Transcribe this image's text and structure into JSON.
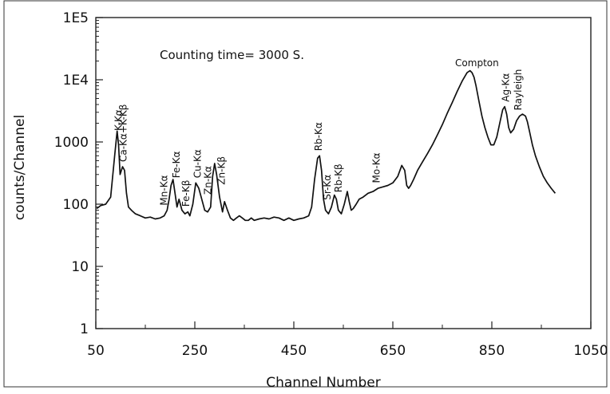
{
  "chart_data": {
    "type": "line",
    "title": "",
    "annotation": "Counting time= 3000 S.",
    "xlabel": "Channel Number",
    "ylabel": "counts/Channel",
    "xlim": [
      50,
      1050
    ],
    "ylim": [
      1,
      100000
    ],
    "yscale": "log",
    "grid": false,
    "xticks": [
      50,
      250,
      450,
      650,
      850,
      1050
    ],
    "xtick_labels": [
      "50",
      "250",
      "450",
      "650",
      "850",
      "1050"
    ],
    "yticks": [
      1,
      10,
      100,
      1000,
      10000,
      100000
    ],
    "ytick_labels": [
      "1",
      "10",
      "100",
      "1000",
      "1E4",
      "1E5"
    ],
    "series": [
      {
        "name": "",
        "color": "#111111",
        "x": [
          52,
          60,
          70,
          80,
          88,
          93,
          96,
          99,
          104,
          108,
          112,
          116,
          122,
          130,
          140,
          150,
          160,
          170,
          180,
          188,
          194,
          198,
          202,
          206,
          210,
          214,
          218,
          224,
          230,
          236,
          240,
          246,
          252,
          258,
          264,
          270,
          276,
          282,
          286,
          290,
          294,
          300,
          306,
          310,
          316,
          322,
          328,
          334,
          340,
          346,
          352,
          358,
          364,
          370,
          380,
          390,
          400,
          410,
          420,
          430,
          440,
          450,
          460,
          470,
          480,
          486,
          492,
          498,
          502,
          506,
          510,
          514,
          520,
          526,
          532,
          536,
          540,
          546,
          552,
          558,
          562,
          566,
          570,
          576,
          582,
          590,
          600,
          610,
          620,
          630,
          640,
          650,
          660,
          668,
          674,
          678,
          682,
          686,
          692,
          700,
          710,
          720,
          730,
          740,
          750,
          760,
          770,
          780,
          790,
          800,
          806,
          810,
          814,
          818,
          824,
          830,
          836,
          842,
          848,
          854,
          860,
          866,
          872,
          876,
          880,
          884,
          888,
          894,
          900,
          906,
          912,
          918,
          922,
          926,
          932,
          938,
          946,
          954,
          962,
          970,
          978
        ],
        "values": [
          85,
          95,
          100,
          130,
          600,
          1500,
          900,
          300,
          400,
          350,
          150,
          90,
          80,
          70,
          65,
          60,
          62,
          58,
          60,
          65,
          80,
          120,
          200,
          250,
          150,
          90,
          120,
          80,
          70,
          75,
          65,
          100,
          220,
          180,
          120,
          80,
          75,
          90,
          280,
          450,
          300,
          130,
          75,
          110,
          80,
          60,
          55,
          60,
          65,
          60,
          55,
          55,
          60,
          55,
          58,
          60,
          58,
          62,
          60,
          55,
          60,
          55,
          58,
          60,
          65,
          90,
          250,
          550,
          600,
          350,
          120,
          80,
          70,
          90,
          140,
          120,
          80,
          70,
          100,
          160,
          110,
          80,
          85,
          100,
          120,
          130,
          150,
          160,
          180,
          190,
          200,
          220,
          280,
          420,
          350,
          200,
          180,
          200,
          250,
          350,
          480,
          650,
          900,
          1300,
          1900,
          2900,
          4300,
          6500,
          9500,
          13000,
          14000,
          13000,
          11000,
          8000,
          4500,
          2600,
          1700,
          1200,
          900,
          900,
          1200,
          2000,
          3300,
          3700,
          2800,
          1700,
          1400,
          1600,
          2200,
          2600,
          2800,
          2600,
          2100,
          1500,
          900,
          600,
          400,
          280,
          220,
          180,
          150
        ]
      }
    ],
    "peak_labels": [
      {
        "text": "K-Kα",
        "x": 96
      },
      {
        "text": "Ca-Kα+K-Kβ",
        "x": 106
      },
      {
        "text": "Mn-Kα",
        "x": 188
      },
      {
        "text": "Fe-Kα",
        "x": 213
      },
      {
        "text": "Fe-Kβ",
        "x": 232
      },
      {
        "text": "Cu-Kα",
        "x": 256
      },
      {
        "text": "Zn-Kα",
        "x": 277
      },
      {
        "text": "Zn-Kβ",
        "x": 304
      },
      {
        "text": "Rb-Kα",
        "x": 500
      },
      {
        "text": "Sr-Kα",
        "x": 518
      },
      {
        "text": "Rb-Kβ",
        "x": 540
      },
      {
        "text": "Mo-Kα",
        "x": 617
      },
      {
        "text": "Ag-Kα",
        "x": 878
      },
      {
        "text": "Rayleigh",
        "x": 903
      }
    ],
    "top_label": {
      "text": "Compton",
      "x": 820
    }
  }
}
